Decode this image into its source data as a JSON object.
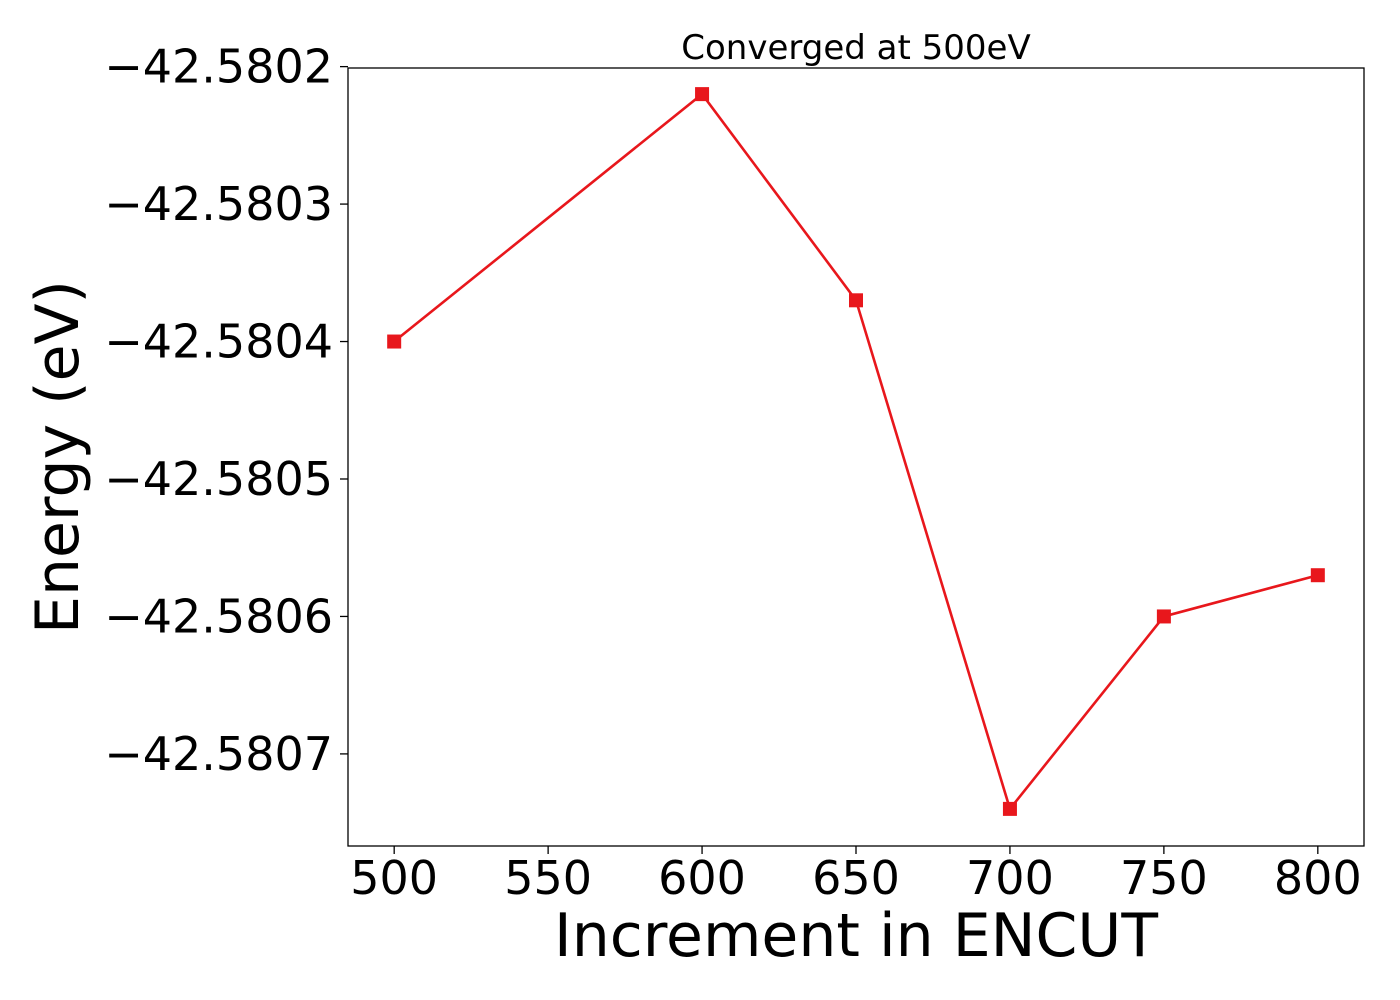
{
  "chart_data": {
    "type": "line",
    "title": "Converged at 500eV",
    "xlabel": "Increment in ENCUT",
    "ylabel": "Energy (eV)",
    "x": [
      500,
      600,
      650,
      700,
      750,
      800
    ],
    "series": [
      {
        "values": [
          -42.5804,
          -42.58022,
          -42.58037,
          -42.58074,
          -42.5806,
          -42.58057
        ],
        "color": "#e8171c",
        "marker": "square"
      }
    ],
    "xlim": [
      485,
      815
    ],
    "ylim": [
      -42.580767,
      -42.580201
    ],
    "xticks": [
      500,
      550,
      600,
      650,
      700,
      750,
      800
    ],
    "xtick_labels": [
      "500",
      "550",
      "600",
      "650",
      "700",
      "750",
      "800"
    ],
    "yticks": [
      -42.5802,
      -42.5803,
      -42.5804,
      -42.5805,
      -42.5806,
      -42.5807
    ],
    "ytick_labels": [
      "−42.5802",
      "−42.5803",
      "−42.5804",
      "−42.5805",
      "−42.5806",
      "−42.5807"
    ],
    "grid": false,
    "legend": "none"
  }
}
